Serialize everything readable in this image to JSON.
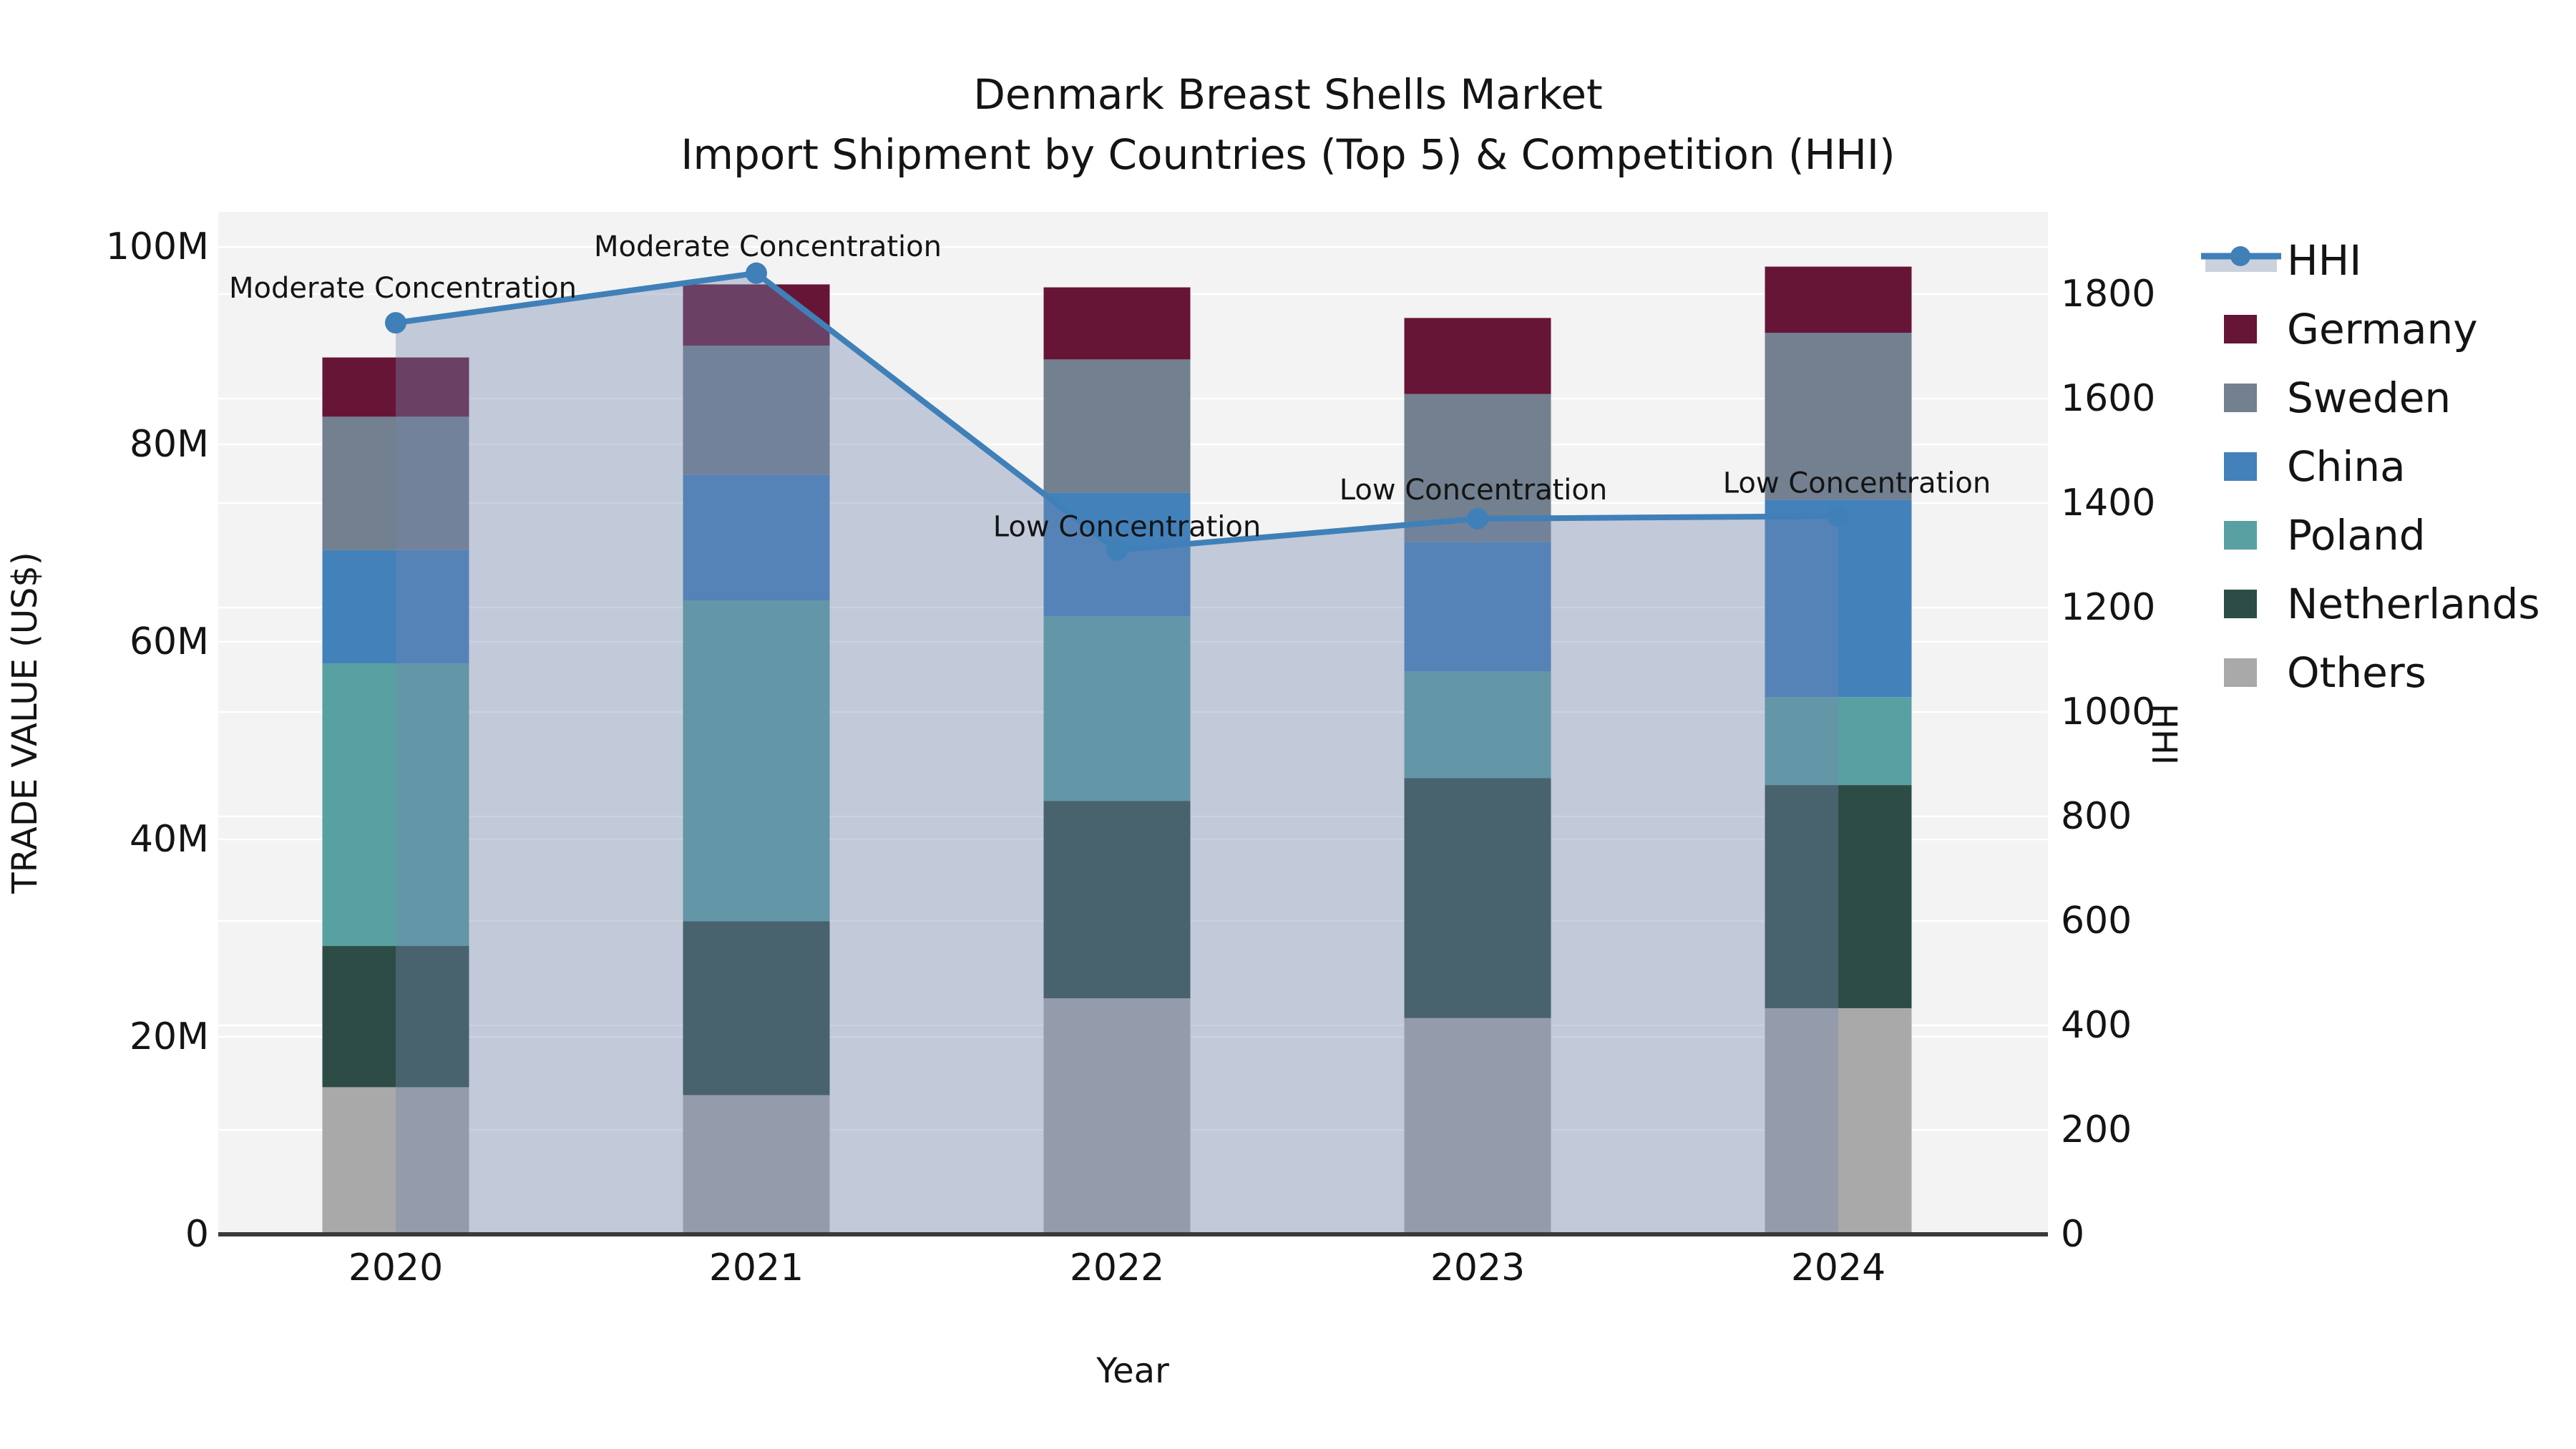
{
  "chart_data": {
    "type": "bar+line",
    "title": "Denmark Breast Shells Market",
    "subtitle": "Import Shipment by Countries (Top 5) & Competition (HHI)",
    "xlabel": "Year",
    "ylabel_left": "TRADE VALUE (US$)",
    "ylabel_right": "HHI",
    "categories": [
      "2020",
      "2021",
      "2022",
      "2023",
      "2024"
    ],
    "unit_left": "M US$ (trade value)",
    "stack_order": [
      "Others",
      "Netherlands",
      "Poland",
      "China",
      "Sweden",
      "Germany"
    ],
    "series": [
      {
        "name": "Germany",
        "color": "#671537",
        "values": [
          6.0,
          6.2,
          7.3,
          7.7,
          6.7
        ]
      },
      {
        "name": "Sweden",
        "color": "#72808F",
        "values": [
          13.5,
          13.1,
          13.5,
          15.0,
          16.9
        ]
      },
      {
        "name": "China",
        "color": "#4381BB",
        "values": [
          11.5,
          12.7,
          12.5,
          13.1,
          20.0
        ]
      },
      {
        "name": "Poland",
        "color": "#59A0A2",
        "values": [
          28.6,
          32.5,
          18.7,
          10.8,
          8.9
        ]
      },
      {
        "name": "Netherlands",
        "color": "#2E4C46",
        "values": [
          14.3,
          17.6,
          20.0,
          24.3,
          22.6
        ]
      },
      {
        "name": "Others",
        "color": "#A9A9A9",
        "values": [
          14.9,
          14.1,
          23.9,
          21.9,
          22.9
        ]
      }
    ],
    "bar_totals": [
      88.8,
      96.2,
      95.9,
      92.8,
      98.0
    ],
    "hhi": {
      "name": "HHI",
      "line_color": "#4080B8",
      "fill_color": "rgba(116,134,175,0.38)",
      "values": [
        1745,
        1840,
        1310,
        1370,
        1375
      ]
    },
    "annotations": [
      {
        "year": "2020",
        "text": "Moderate Concentration"
      },
      {
        "year": "2021",
        "text": "Moderate Concentration"
      },
      {
        "year": "2022",
        "text": "Low Concentration"
      },
      {
        "year": "2023",
        "text": "Low Concentration"
      },
      {
        "year": "2024",
        "text": "Low Concentration"
      }
    ],
    "y_left_axis": {
      "tick_labels": [
        "0",
        "20M",
        "40M",
        "60M",
        "80M",
        "100M"
      ],
      "tick_values": [
        0,
        20,
        40,
        60,
        80,
        100
      ],
      "max": 103.5
    },
    "y_right_axis": {
      "tick_labels": [
        "0",
        "200",
        "400",
        "600",
        "800",
        "1000",
        "1200",
        "1400",
        "1600",
        "1800"
      ],
      "tick_values": [
        0,
        200,
        400,
        600,
        800,
        1000,
        1200,
        1400,
        1600,
        1800
      ],
      "max": 1958
    },
    "legend": [
      "HHI",
      "Germany",
      "Sweden",
      "China",
      "Poland",
      "Netherlands",
      "Others"
    ],
    "style": {
      "plot_bg": "#F3F3F3",
      "grid_color": "#FFFFFF",
      "axis_line_color": "#3A3A3A",
      "text_color": "#141414",
      "page_bg": "#FFFFFF",
      "hhi_legend_band": "#CBD2DD"
    },
    "grid": true,
    "legend_position": "right"
  }
}
